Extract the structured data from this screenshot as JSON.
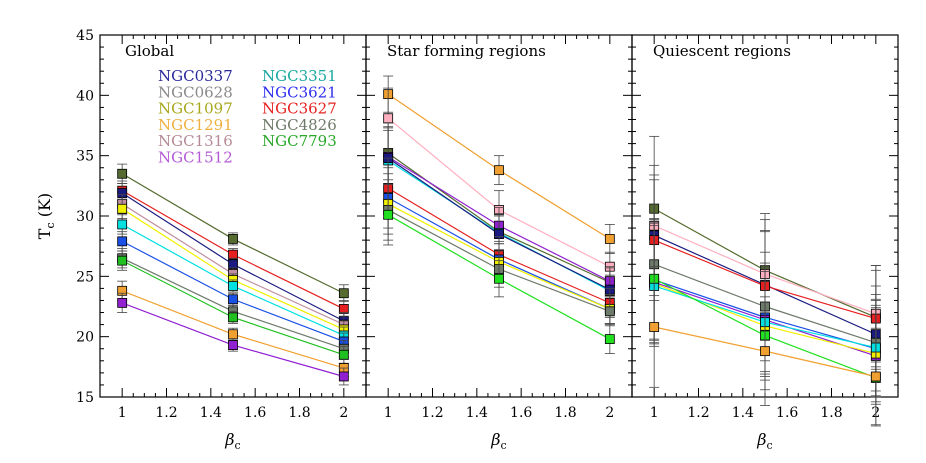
{
  "chart_data": {
    "type": "line",
    "ylabel": "T_c (K)",
    "xlabel": "β_c",
    "ylim": [
      15,
      45
    ],
    "xlim": [
      0.9,
      2.1
    ],
    "x": [
      1,
      1.5,
      2
    ],
    "xticks": [
      1,
      1.2,
      1.4,
      1.6,
      1.8,
      2
    ],
    "yticks": [
      15,
      20,
      25,
      30,
      35,
      40,
      45
    ],
    "error_bars": true,
    "legend_location": "top-left of first panel",
    "legend": [
      {
        "name": "NGC0337",
        "color": "#2a2a9c"
      },
      {
        "name": "NGC0628",
        "color": "#8a8a8a"
      },
      {
        "name": "NGC1097",
        "color": "#a8a81e"
      },
      {
        "name": "NGC1291",
        "color": "#f0b040"
      },
      {
        "name": "NGC1316",
        "color": "#b48a96"
      },
      {
        "name": "NGC1512",
        "color": "#b45ad6"
      },
      {
        "name": "NGC3351",
        "color": "#1aa8a0"
      },
      {
        "name": "NGC3621",
        "color": "#2d2df0"
      },
      {
        "name": "NGC3627",
        "color": "#e62020"
      },
      {
        "name": "NGC4826",
        "color": "#6e7a6a"
      },
      {
        "name": "NGC7793",
        "color": "#2aa82a"
      }
    ],
    "panels": [
      {
        "title": "Global",
        "series": [
          {
            "color": "#556b2f",
            "values": [
              33.5,
              28.1,
              23.6
            ],
            "err": [
              0.8,
              0.5,
              0.7
            ]
          },
          {
            "color": "#e62020",
            "values": [
              32.1,
              26.8,
              22.3
            ],
            "err": [
              0.8,
              0.5,
              0.7
            ]
          },
          {
            "color": "#1a1a80",
            "values": [
              31.9,
              26.0,
              21.3
            ],
            "err": [
              0.8,
              0.5,
              0.7
            ]
          },
          {
            "color": "#c090a0",
            "values": [
              31.0,
              25.2,
              21.0
            ],
            "err": [
              0.8,
              0.5,
              0.7
            ]
          },
          {
            "color": "#f0f000",
            "values": [
              30.6,
              24.7,
              20.6
            ],
            "err": [
              0.8,
              0.5,
              0.7
            ]
          },
          {
            "color": "#00e0e0",
            "values": [
              29.3,
              24.2,
              20.1
            ],
            "err": [
              0.8,
              0.5,
              0.7
            ]
          },
          {
            "color": "#1a50e6",
            "values": [
              27.9,
              23.1,
              19.6
            ],
            "err": [
              0.8,
              0.5,
              0.7
            ]
          },
          {
            "color": "#6e7a6a",
            "values": [
              26.5,
              22.1,
              19.0
            ],
            "err": [
              0.8,
              0.5,
              0.7
            ]
          },
          {
            "color": "#20c020",
            "values": [
              26.3,
              21.6,
              18.5
            ],
            "err": [
              0.8,
              0.5,
              0.7
            ]
          },
          {
            "color": "#f0a030",
            "values": [
              23.8,
              20.2,
              17.4
            ],
            "err": [
              0.8,
              0.5,
              0.7
            ]
          },
          {
            "color": "#9020d0",
            "values": [
              22.8,
              19.3,
              16.7
            ],
            "err": [
              0.8,
              0.5,
              0.7
            ]
          }
        ]
      },
      {
        "title": "Star forming regions",
        "series": [
          {
            "color": "#f0a030",
            "values": [
              40.1,
              33.8,
              28.1
            ],
            "err": [
              1.5,
              1.2,
              1.2
            ]
          },
          {
            "color": "#ffb0c0",
            "values": [
              38.1,
              30.5,
              25.8
            ],
            "err": [
              2.5,
              1.6,
              1.2
            ]
          },
          {
            "color": "#556b2f",
            "values": [
              35.2,
              28.7,
              24.5
            ],
            "err": [
              2.5,
              1.5,
              1.2
            ]
          },
          {
            "color": "#9020d0",
            "values": [
              34.9,
              29.2,
              24.6
            ],
            "err": [
              2.5,
              1.5,
              1.2
            ]
          },
          {
            "color": "#00e0e0",
            "values": [
              34.6,
              28.6,
              23.8
            ],
            "err": [
              2.5,
              1.5,
              1.2
            ]
          },
          {
            "color": "#1a1a80",
            "values": [
              34.8,
              28.5,
              23.9
            ],
            "err": [
              2.5,
              1.5,
              1.2
            ]
          },
          {
            "color": "#e62020",
            "values": [
              32.3,
              26.8,
              22.8
            ],
            "err": [
              2.5,
              1.5,
              1.2
            ]
          },
          {
            "color": "#1a50e6",
            "values": [
              31.5,
              26.4,
              22.3
            ],
            "err": [
              2.5,
              1.5,
              1.2
            ]
          },
          {
            "color": "#f0f000",
            "values": [
              31.0,
              26.2,
              22.3
            ],
            "err": [
              2.5,
              1.5,
              1.2
            ]
          },
          {
            "color": "#6e7a6a",
            "values": [
              30.5,
              25.6,
              22.1
            ],
            "err": [
              2.5,
              1.5,
              1.2
            ]
          },
          {
            "color": "#20e020",
            "values": [
              30.1,
              24.8,
              19.8
            ],
            "err": [
              2.5,
              1.5,
              1.2
            ]
          }
        ]
      },
      {
        "title": "Quiescent regions",
        "series": [
          {
            "color": "#556b2f",
            "values": [
              30.6,
              25.5,
              21.6
            ],
            "err": [
              6.0,
              4.7,
              4.3
            ]
          },
          {
            "color": "#ffb0c0",
            "values": [
              29.2,
              25.2,
              21.9
            ],
            "err": [
              5.0,
              4.5,
              4.0
            ]
          },
          {
            "color": "#1a1a80",
            "values": [
              28.4,
              24.3,
              20.2
            ],
            "err": [
              5.0,
              4.5,
              4.0
            ]
          },
          {
            "color": "#e62020",
            "values": [
              28.0,
              24.2,
              21.5
            ],
            "err": [
              5.0,
              4.5,
              4.0
            ]
          },
          {
            "color": "#6e7a6a",
            "values": [
              26.0,
              22.5,
              19.5
            ],
            "err": [
              5.0,
              4.5,
              4.0
            ]
          },
          {
            "color": "#1a50e6",
            "values": [
              24.7,
              21.6,
              19.0
            ],
            "err": [
              5.0,
              4.5,
              4.0
            ]
          },
          {
            "color": "#9020d0",
            "values": [
              24.5,
              21.4,
              18.4
            ],
            "err": [
              5.0,
              4.5,
              4.0
            ]
          },
          {
            "color": "#f0f000",
            "values": [
              24.4,
              20.9,
              18.6
            ],
            "err": [
              5.0,
              4.5,
              4.0
            ]
          },
          {
            "color": "#00e0e0",
            "values": [
              24.2,
              21.2,
              19.1
            ],
            "err": [
              5.0,
              4.5,
              4.0
            ]
          },
          {
            "color": "#20e020",
            "values": [
              24.8,
              20.1,
              16.6
            ],
            "err": [
              5.0,
              4.5,
              4.0
            ]
          },
          {
            "color": "#f0a030",
            "values": [
              20.8,
              18.8,
              16.7
            ],
            "err": [
              5.0,
              4.5,
              4.0
            ]
          }
        ]
      }
    ]
  }
}
